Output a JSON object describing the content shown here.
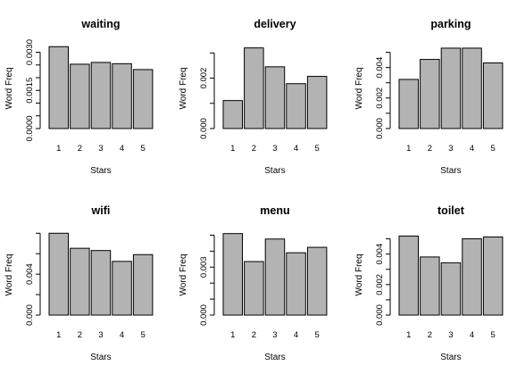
{
  "chart_data": [
    {
      "type": "bar",
      "title": "waiting",
      "xlabel": "Stars",
      "ylabel": "Word Freq",
      "categories": [
        "1",
        "2",
        "3",
        "4",
        "5"
      ],
      "values": [
        0.00322,
        0.00253,
        0.0026,
        0.00255,
        0.00232
      ],
      "ylim": [
        0,
        0.0033
      ],
      "yticks": [
        "0.0000",
        "0.0015",
        "0.0030"
      ],
      "ytick_values": [
        0,
        0.0015,
        0.003
      ],
      "minor_ticks": [
        0.0005,
        0.001,
        0.002,
        0.0025
      ]
    },
    {
      "type": "bar",
      "title": "delivery",
      "xlabel": "Stars",
      "ylabel": "Word Freq",
      "categories": [
        "1",
        "2",
        "3",
        "4",
        "5"
      ],
      "values": [
        0.00111,
        0.0032,
        0.00245,
        0.00178,
        0.00207
      ],
      "ylim": [
        0,
        0.00333
      ],
      "yticks": [
        "0.000",
        "0.002"
      ],
      "ytick_values": [
        0,
        0.002
      ],
      "minor_ticks": [
        0.001,
        0.003
      ]
    },
    {
      "type": "bar",
      "title": "parking",
      "xlabel": "Stars",
      "ylabel": "Word Freq",
      "categories": [
        "1",
        "2",
        "3",
        "4",
        "5"
      ],
      "values": [
        0.00322,
        0.00453,
        0.00527,
        0.00527,
        0.0043
      ],
      "ylim": [
        0,
        0.0055
      ],
      "yticks": [
        "0.000",
        "0.002",
        "0.004"
      ],
      "ytick_values": [
        0,
        0.002,
        0.004
      ],
      "minor_ticks": [
        0.001,
        0.003,
        0.005
      ]
    },
    {
      "type": "bar",
      "title": "wifi",
      "xlabel": "Stars",
      "ylabel": "Word Freq",
      "categories": [
        "1",
        "2",
        "3",
        "4",
        "5"
      ],
      "values": [
        0.008,
        0.00653,
        0.00631,
        0.00525,
        0.00591
      ],
      "ylim": [
        0,
        0.0082
      ],
      "yticks": [
        "0.000",
        "0.004"
      ],
      "ytick_values": [
        0,
        0.004
      ],
      "minor_ticks": [
        0.002,
        0.006,
        0.008
      ]
    },
    {
      "type": "bar",
      "title": "menu",
      "xlabel": "Stars",
      "ylabel": "Word Freq",
      "categories": [
        "1",
        "2",
        "3",
        "4",
        "5"
      ],
      "values": [
        0.0051,
        0.00335,
        0.00476,
        0.0039,
        0.00424
      ],
      "ylim": [
        0,
        0.00525
      ],
      "yticks": [
        "0.000",
        "0.003"
      ],
      "ytick_values": [
        0,
        0.003
      ],
      "minor_ticks": [
        0.001,
        0.002,
        0.004,
        0.005
      ]
    },
    {
      "type": "bar",
      "title": "toilet",
      "xlabel": "Stars",
      "ylabel": "Word Freq",
      "categories": [
        "1",
        "2",
        "3",
        "4",
        "5"
      ],
      "values": [
        0.00518,
        0.00381,
        0.00343,
        0.005,
        0.00512
      ],
      "ylim": [
        0,
        0.0055
      ],
      "yticks": [
        "0.000",
        "0.002",
        "0.004"
      ],
      "ytick_values": [
        0,
        0.002,
        0.004
      ],
      "minor_ticks": [
        0.001,
        0.003,
        0.005
      ]
    }
  ],
  "colors": {
    "bar_fill": "#b3b3b3",
    "bar_stroke": "#000000"
  }
}
